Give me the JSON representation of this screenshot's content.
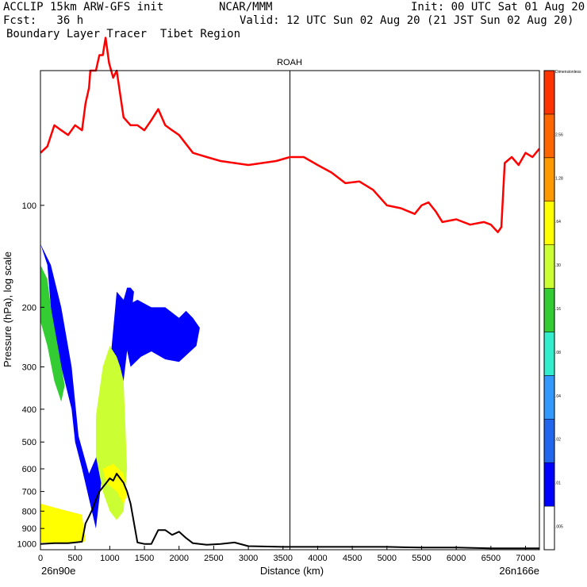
{
  "header": {
    "line1_left": "ACCLIP 15km ARW-GFS init",
    "line1_mid": "NCAR/MMM",
    "line1_right": "Init: 00 UTC Sat 01 Aug 20",
    "line2_left": "Fcst:   36 h",
    "line2_right": "Valid: 12 UTC Sun 02 Aug 20 (21 JST Sun 02 Aug 20)",
    "line3": "Boundary Layer Tracer  Tibet Region"
  },
  "colors": {
    "tropopause": "#ff0000",
    "terrain": "#000000",
    "colorbar": [
      "#ffffff",
      "#0000ff",
      "#2266ee",
      "#3399ff",
      "#33eecc",
      "#33cc33",
      "#ccff33",
      "#ffff00",
      "#ff9900",
      "#ff6600",
      "#ff3300"
    ]
  },
  "chart_data": {
    "type": "contour-cross-section",
    "title": "ROAH",
    "xlabel": "Distance (km)",
    "ylabel": "Pressure (hPa), log scale",
    "x_start_label": "26n90e",
    "x_end_label": "26n166e",
    "xlim": [
      0,
      7200
    ],
    "ylim": [
      1040,
      40
    ],
    "y_scale": "log",
    "x_ticks": [
      0,
      500,
      1000,
      1500,
      2000,
      2500,
      3000,
      3500,
      4000,
      4500,
      5000,
      5500,
      6000,
      6500,
      7000
    ],
    "y_ticks": [
      1000,
      900,
      800,
      700,
      600,
      500,
      400,
      300,
      200,
      100
    ],
    "vertical_marker_x": 3600,
    "colorbar_labels": [
      ".005",
      ".01",
      ".02",
      ".04",
      ".08",
      ".16",
      ".30",
      ".64",
      "1.28",
      "2.56",
      "Dimensionless"
    ],
    "series": [
      {
        "name": "tropopause",
        "x": [
          0,
          100,
          200,
          300,
          400,
          500,
          600,
          650,
          700,
          720,
          760,
          800,
          850,
          900,
          940,
          990,
          1050,
          1100,
          1200,
          1300,
          1400,
          1500,
          1600,
          1700,
          1800,
          1900,
          2000,
          2200,
          2400,
          2600,
          2800,
          3000,
          3200,
          3400,
          3600,
          3800,
          4000,
          4200,
          4400,
          4600,
          4800,
          5000,
          5200,
          5400,
          5500,
          5600,
          5700,
          5800,
          6000,
          6200,
          6400,
          6500,
          6600,
          6650,
          6700,
          6800,
          6900,
          7000,
          7100,
          7200
        ],
        "y": [
          70,
          67,
          58,
          60,
          62,
          58,
          60,
          50,
          45,
          40,
          40,
          40,
          36,
          36,
          32,
          38,
          42,
          40,
          55,
          58,
          58,
          60,
          56,
          52,
          58,
          60,
          62,
          70,
          72,
          74,
          75,
          76,
          75,
          74,
          72,
          72,
          76,
          80,
          86,
          85,
          90,
          100,
          102,
          106,
          100,
          98,
          104,
          112,
          110,
          114,
          112,
          114,
          120,
          116,
          75,
          72,
          76,
          70,
          72,
          68
        ]
      },
      {
        "name": "terrain",
        "x": [
          0,
          200,
          400,
          500,
          600,
          650,
          700,
          750,
          800,
          850,
          900,
          950,
          1000,
          1050,
          1100,
          1150,
          1200,
          1250,
          1300,
          1400,
          1500,
          1600,
          1700,
          1800,
          1900,
          2000,
          2100,
          2200,
          2400,
          2600,
          2800,
          3000,
          3500,
          4000,
          4500,
          5000,
          5500,
          6000,
          6500,
          7000,
          7200
        ],
        "y": [
          1000,
          995,
          995,
          990,
          985,
          870,
          830,
          790,
          740,
          700,
          680,
          660,
          640,
          650,
          620,
          640,
          660,
          700,
          760,
          990,
          1000,
          1000,
          910,
          910,
          940,
          920,
          960,
          995,
          1005,
          1000,
          990,
          1015,
          1020,
          1020,
          1020,
          1020,
          1025,
          1025,
          1030,
          1030,
          1030
        ]
      }
    ],
    "contour_regions": [
      {
        "level": ".01",
        "x": [
          0,
          100,
          150,
          200,
          300,
          450,
          500,
          600,
          800,
          900,
          1000,
          1100,
          1200,
          1250,
          1300,
          1350,
          1200,
          1050,
          900,
          700,
          550,
          450,
          300,
          150,
          0
        ],
        "y": [
          130,
          150,
          200,
          240,
          300,
          400,
          500,
          600,
          900,
          600,
          300,
          180,
          190,
          175,
          175,
          180,
          330,
          360,
          500,
          620,
          480,
          300,
          200,
          150,
          130
        ]
      },
      {
        "level": ".01",
        "x": [
          1200,
          1400,
          1600,
          1800,
          2000,
          2100,
          2200,
          2300,
          2250,
          2000,
          1800,
          1600,
          1450,
          1300,
          1200
        ],
        "y": [
          200,
          190,
          200,
          200,
          215,
          205,
          215,
          230,
          260,
          290,
          285,
          270,
          280,
          300,
          240
        ]
      },
      {
        "level": ".16",
        "x": [
          0,
          100,
          150,
          250,
          350,
          300,
          200,
          100,
          0
        ],
        "y": [
          150,
          165,
          200,
          260,
          340,
          380,
          330,
          260,
          220
        ]
      },
      {
        "level": ".30",
        "x": [
          800,
          900,
          1000,
          1100,
          1150,
          1200,
          1250,
          1200,
          1100,
          1000,
          900,
          800
        ],
        "y": [
          420,
          300,
          260,
          280,
          300,
          330,
          600,
          800,
          850,
          800,
          700,
          550
        ]
      },
      {
        "level": ".64",
        "x": [
          0,
          200,
          400,
          600,
          650,
          600,
          400,
          200,
          0
        ],
        "y": [
          760,
          780,
          800,
          820,
          980,
          990,
          990,
          990,
          990
        ]
      },
      {
        "level": ".64",
        "x": [
          900,
          1050,
          1200,
          1250,
          1200,
          1100,
          950
        ],
        "y": [
          600,
          580,
          620,
          720,
          760,
          700,
          660
        ]
      }
    ]
  }
}
